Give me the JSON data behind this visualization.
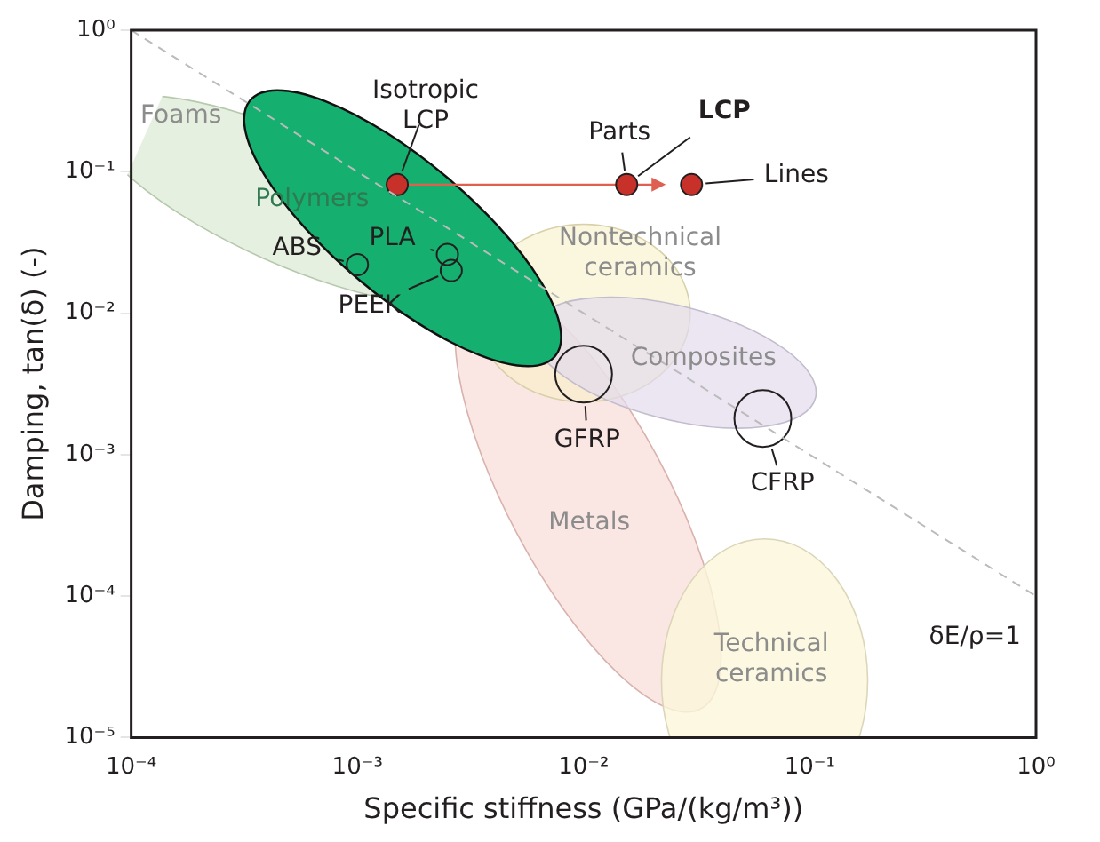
{
  "chart_data": {
    "type": "scatter",
    "xlabel": "Specific stiffness (GPa/(kg/m³))",
    "ylabel": "Damping, tan(δ) (-)",
    "log": "xy",
    "xlim": [
      0.0001,
      1
    ],
    "ylim": [
      1e-05,
      1
    ],
    "xticks": [
      {
        "value": 0.0001,
        "label": "10⁻⁴"
      },
      {
        "value": 0.001,
        "label": "10⁻³"
      },
      {
        "value": 0.01,
        "label": "10⁻²"
      },
      {
        "value": 0.1,
        "label": "10⁻¹"
      },
      {
        "value": 1,
        "label": "10⁰"
      }
    ],
    "yticks": [
      {
        "value": 1e-05,
        "label": "10⁻⁵"
      },
      {
        "value": 0.0001,
        "label": "10⁻⁴"
      },
      {
        "value": 0.001,
        "label": "10⁻³"
      },
      {
        "value": 0.01,
        "label": "10⁻²"
      },
      {
        "value": 0.1,
        "label": "10⁻¹"
      },
      {
        "value": 1,
        "label": "10⁰"
      }
    ],
    "grid": false,
    "legend": false,
    "marker": "circle",
    "series": [
      {
        "type": "line",
        "color": "#bbbbbb",
        "line_style": "dashed",
        "marker": "none",
        "x": [
          0.0001,
          1
        ],
        "values": [
          1,
          0.0001
        ]
      },
      {
        "color": "#c8312a",
        "x": [
          0.0015,
          0.0155,
          0.03
        ],
        "values": [
          0.081,
          0.081,
          0.081
        ]
      },
      {
        "color": "#231f20",
        "x": [
          0.001,
          0.0025,
          0.0026
        ],
        "values": [
          0.022,
          0.026,
          0.02
        ]
      },
      {
        "color": "#231f20",
        "x": [
          0.01,
          0.062
        ],
        "values": [
          0.0037,
          0.0018
        ]
      }
    ],
    "annotations": [
      {
        "text": "Isotropic\nLCP",
        "x": 0.0015,
        "y": 0.081
      },
      {
        "text": "Parts",
        "x": 0.0155,
        "y": 0.081
      },
      {
        "text": "LCP",
        "x": 0.0155,
        "y": 0.081
      },
      {
        "text": "Lines",
        "x": 0.03,
        "y": 0.081
      },
      {
        "text": "ABS",
        "x": 0.001,
        "y": 0.022
      },
      {
        "text": "PLA",
        "x": 0.0025,
        "y": 0.026
      },
      {
        "text": "PEEK",
        "x": 0.0026,
        "y": 0.02
      },
      {
        "text": "GFRP",
        "x": 0.01,
        "y": 0.0037
      },
      {
        "text": "CFRP",
        "x": 0.062,
        "y": 0.0018
      },
      "Foams",
      "Polymers",
      "Nontechnical\nceramics",
      "Composites",
      "Metals",
      "Technical\nceramics",
      "δE/ρ=1"
    ]
  }
}
